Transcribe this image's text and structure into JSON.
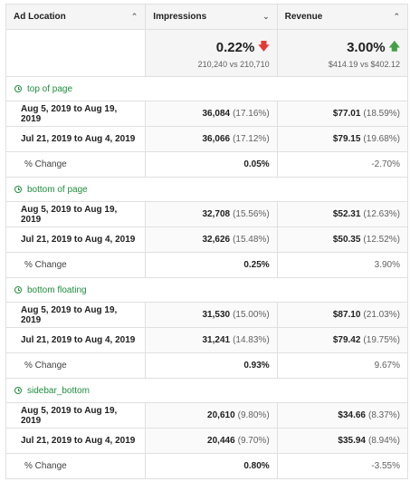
{
  "header": {
    "ad_location": "Ad Location",
    "impressions": "Impressions",
    "revenue": "Revenue"
  },
  "summary": {
    "impressions_pct": "0.22%",
    "impressions_cmp": "210,240 vs 210,710",
    "revenue_pct": "3.00%",
    "revenue_cmp": "$414.19 vs $402.12",
    "impressions_trend_icon": "arrow-down-icon",
    "revenue_trend_icon": "arrow-up-icon",
    "down_color": "#e53935",
    "up_color": "#43a047"
  },
  "change_label": "% Change",
  "groups": [
    {
      "name": "top of page",
      "rows": [
        {
          "range": "Aug 5, 2019 to Aug 19, 2019",
          "impressions": "36,084",
          "imp_share": "(17.16%)",
          "revenue": "$77.01",
          "rev_share": "(18.59%)"
        },
        {
          "range": "Jul 21, 2019 to Aug 4, 2019",
          "impressions": "36,066",
          "imp_share": "(17.12%)",
          "revenue": "$79.15",
          "rev_share": "(19.68%)"
        }
      ],
      "imp_change": "0.05%",
      "rev_change": "-2.70%"
    },
    {
      "name": "bottom of page",
      "rows": [
        {
          "range": "Aug 5, 2019 to Aug 19, 2019",
          "impressions": "32,708",
          "imp_share": "(15.56%)",
          "revenue": "$52.31",
          "rev_share": "(12.63%)"
        },
        {
          "range": "Jul 21, 2019 to Aug 4, 2019",
          "impressions": "32,626",
          "imp_share": "(15.48%)",
          "revenue": "$50.35",
          "rev_share": "(12.52%)"
        }
      ],
      "imp_change": "0.25%",
      "rev_change": "3.90%"
    },
    {
      "name": "bottom floating",
      "rows": [
        {
          "range": "Aug 5, 2019 to Aug 19, 2019",
          "impressions": "31,530",
          "imp_share": "(15.00%)",
          "revenue": "$87.10",
          "rev_share": "(21.03%)"
        },
        {
          "range": "Jul 21, 2019 to Aug 4, 2019",
          "impressions": "31,241",
          "imp_share": "(14.83%)",
          "revenue": "$79.42",
          "rev_share": "(19.75%)"
        }
      ],
      "imp_change": "0.93%",
      "rev_change": "9.67%"
    },
    {
      "name": "sidebar_bottom",
      "rows": [
        {
          "range": "Aug 5, 2019 to Aug 19, 2019",
          "impressions": "20,610",
          "imp_share": "(9.80%)",
          "revenue": "$34.66",
          "rev_share": "(8.37%)"
        },
        {
          "range": "Jul 21, 2019 to Aug 4, 2019",
          "impressions": "20,446",
          "imp_share": "(9.70%)",
          "revenue": "$35.94",
          "rev_share": "(8.94%)"
        }
      ],
      "imp_change": "0.80%",
      "rev_change": "-3.55%"
    }
  ]
}
